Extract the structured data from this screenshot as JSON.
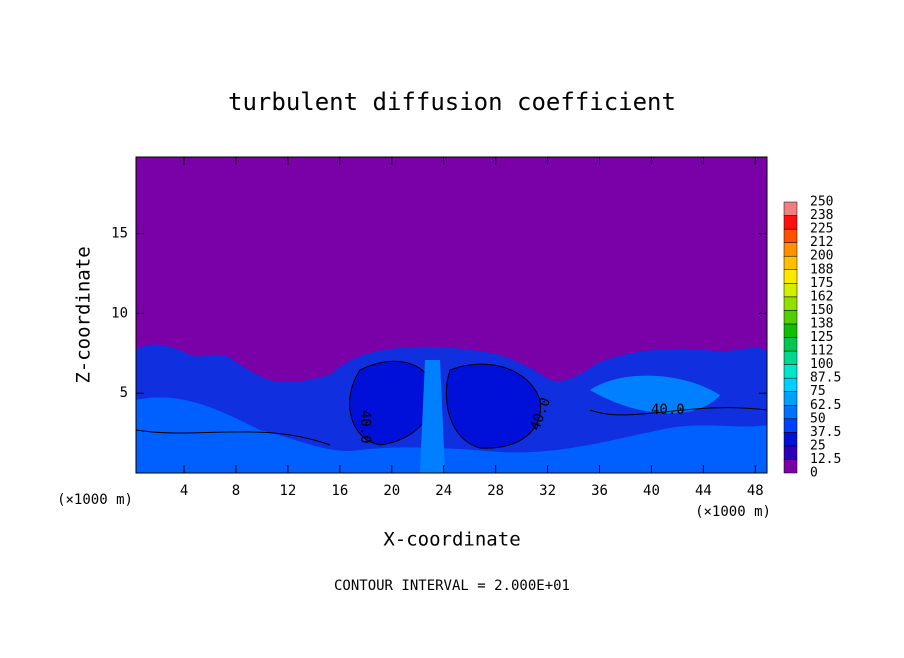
{
  "chart_data": {
    "type": "contour",
    "title": "turbulent diffusion coefficient",
    "x_label": "X-coordinate",
    "y_label": "Z-coordinate",
    "x_unit": "(×1000 m)",
    "footer": "CONTOUR INTERVAL = 2.000E+01",
    "xlim": [
      0.3,
      48.9
    ],
    "xticks": [
      4,
      8,
      12,
      16,
      20,
      24,
      28,
      32,
      36,
      40,
      44,
      48
    ],
    "ylim": [
      0,
      19.8
    ],
    "yticks": [
      5,
      10,
      15
    ],
    "contour_labels": [
      "40.0",
      "40.0",
      "40.0"
    ],
    "colorbar": {
      "levels": [
        0,
        12.5,
        25,
        37.5,
        50,
        62.5,
        75,
        87.5,
        100,
        112,
        125,
        138,
        150,
        162,
        175,
        188,
        200,
        212,
        225,
        238,
        250
      ],
      "colors": [
        "#7a00a8",
        "#2a00b8",
        "#0010d8",
        "#0040ff",
        "#0070ff",
        "#00a0ff",
        "#00d0ff",
        "#00e8c8",
        "#00d890",
        "#00c850",
        "#10c000",
        "#50d000",
        "#90e000",
        "#d0f000",
        "#ffe800",
        "#ffc000",
        "#ff9000",
        "#ff5000",
        "#ff1010",
        "#f08080"
      ]
    }
  }
}
